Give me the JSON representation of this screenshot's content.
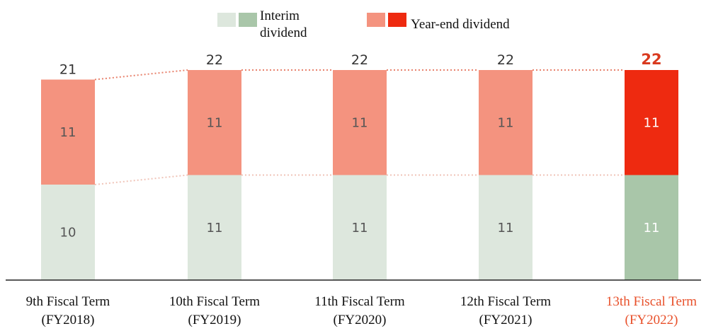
{
  "chart_data": {
    "type": "bar",
    "stacked": true,
    "categories": [
      [
        "9th Fiscal Term",
        "(FY2018)"
      ],
      [
        "10th Fiscal Term",
        "(FY2019)"
      ],
      [
        "11th Fiscal Term",
        "(FY2020)"
      ],
      [
        "12th Fiscal Term",
        "(FY2021)"
      ],
      [
        "13th Fiscal Term",
        "(FY2022)"
      ]
    ],
    "highlight_index": 4,
    "series": [
      {
        "name": [
          "Interim",
          "dividend"
        ],
        "values": [
          10,
          11,
          11,
          11,
          11
        ],
        "color": "#dde7dd",
        "highlight_color": "#a9c6a9"
      },
      {
        "name": [
          "Year-end dividend"
        ],
        "values": [
          11,
          11,
          11,
          11,
          11
        ],
        "color": "#f4937f",
        "highlight_color": "#ee2a10"
      }
    ],
    "totals": [
      21,
      22,
      22,
      22,
      22
    ],
    "segment_labels": [
      [
        "10",
        "11"
      ],
      [
        "11",
        "11"
      ],
      [
        "11",
        "11"
      ],
      [
        "11",
        "11"
      ],
      [
        "11",
        "11"
      ]
    ],
    "xlabel": "",
    "ylabel": "",
    "grid": false,
    "legend_position": "top",
    "highlight_label_color": "#e8502a",
    "total_highlight_color": "#d93a1f",
    "connector_color": "#e8826d"
  }
}
